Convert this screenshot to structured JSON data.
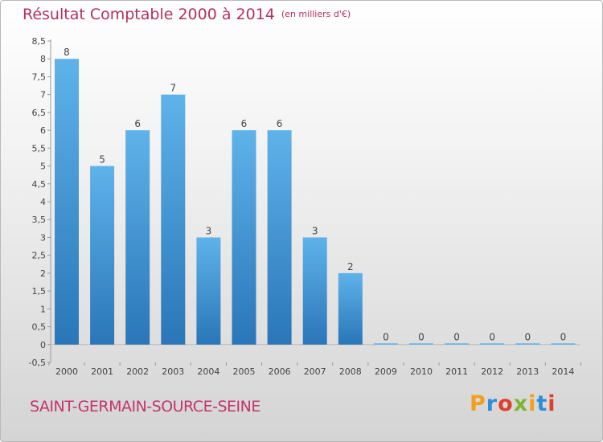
{
  "header": {
    "title": "Résultat Comptable 2000 à 2014",
    "unit": "(en milliers d'€)"
  },
  "footer": {
    "commune": "SAINT-GERMAIN-SOURCE-SEINE",
    "logo": "Proxiti"
  },
  "colors": {
    "bar_top": "#5fb2ea",
    "bar_bottom": "#2a76b8",
    "title": "#b5305b"
  },
  "chart_data": {
    "type": "bar",
    "title": "Résultat Comptable 2000 à 2014",
    "subtitle": "(en milliers d'€)",
    "xlabel": "",
    "ylabel": "",
    "categories": [
      "2000",
      "2001",
      "2002",
      "2003",
      "2004",
      "2005",
      "2006",
      "2007",
      "2008",
      "2009",
      "2010",
      "2011",
      "2012",
      "2013",
      "2014"
    ],
    "values": [
      8,
      5,
      6,
      7,
      3,
      6,
      6,
      3,
      2,
      0,
      0,
      0,
      0,
      0,
      0
    ],
    "data_labels": [
      "8",
      "5",
      "6",
      "7",
      "3",
      "6",
      "6",
      "3",
      "2",
      "0",
      "0",
      "0",
      "0",
      "0",
      "0"
    ],
    "ylim": [
      -0.5,
      8.5
    ],
    "yticks": [
      -0.5,
      0,
      0.5,
      1,
      1.5,
      2,
      2.5,
      3,
      3.5,
      4,
      4.5,
      5,
      5.5,
      6,
      6.5,
      7,
      7.5,
      8,
      8.5
    ],
    "ytick_labels": [
      "-0,5",
      "0",
      "0,5",
      "1",
      "1,5",
      "2",
      "2,5",
      "3",
      "3,5",
      "4",
      "4,5",
      "5",
      "5,5",
      "6",
      "6,5",
      "7",
      "7,5",
      "8",
      "8,5"
    ],
    "grid": false
  }
}
